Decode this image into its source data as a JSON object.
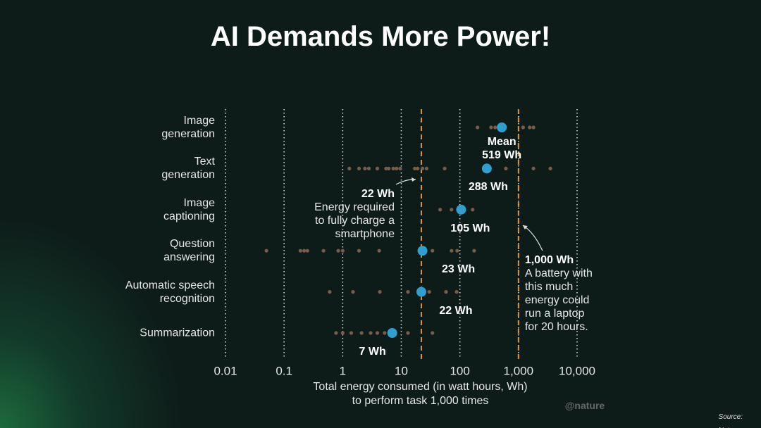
{
  "chart_data": {
    "type": "dotplot",
    "title": "AI Demands More Power!",
    "xlabel": "Total energy consumed (in watt hours, Wh)\nto perform task 1,000 times",
    "log_x": true,
    "grid": true,
    "xlim": [
      0.01,
      10000
    ],
    "xticks": [
      0.01,
      0.1,
      1,
      10,
      100,
      {
        "value": 1000,
        "label": "1,000"
      },
      {
        "value": 10000,
        "label": "10,000"
      }
    ],
    "categories": [
      "Image\ngeneration",
      "Text\ngeneration",
      "Image\ncaptioning",
      "Question\nanswering",
      "Automatic speech\nrecognition",
      "Summarization"
    ],
    "series": [
      {
        "name": "Mean",
        "color": "#2f9fd0",
        "values": [
          519,
          288,
          105,
          23,
          22,
          7
        ],
        "value_labels": [
          "519 Wh",
          "288 Wh",
          "105 Wh",
          "23 Wh",
          "22 Wh",
          "7 Wh"
        ]
      }
    ],
    "points_color": "#7a5c4c",
    "points": [
      [
        200,
        340,
        400,
        1200,
        1550,
        1800
      ],
      [
        1.3,
        1.9,
        2.4,
        2.8,
        3.9,
        5.5,
        6.1,
        7.3,
        8.3,
        9.6,
        17,
        19,
        23,
        27,
        55,
        610,
        1800,
        3500
      ],
      [
        46,
        72,
        165
      ],
      [
        0.05,
        0.19,
        0.22,
        0.25,
        0.47,
        0.84,
        1.0,
        1.9,
        4.2,
        34,
        72,
        90,
        175
      ],
      [
        0.6,
        1.5,
        4.3,
        13,
        30,
        58,
        88
      ],
      [
        0.77,
        1.0,
        1.4,
        2.1,
        3.0,
        3.9,
        5.2,
        13,
        34
      ]
    ],
    "reference_color": "#e8902a",
    "reference_lines": [
      {
        "value": 22,
        "label": "22 Wh",
        "text": "Energy required\nto fully charge a\nsmartphone"
      },
      {
        "value": 1000,
        "label": "1,000 Wh",
        "text": "A battery with\nthis much\nenergy could\nrun a laptop\nfor 20 hours."
      }
    ],
    "watermark": "@nature",
    "source": "Source: Nature"
  }
}
